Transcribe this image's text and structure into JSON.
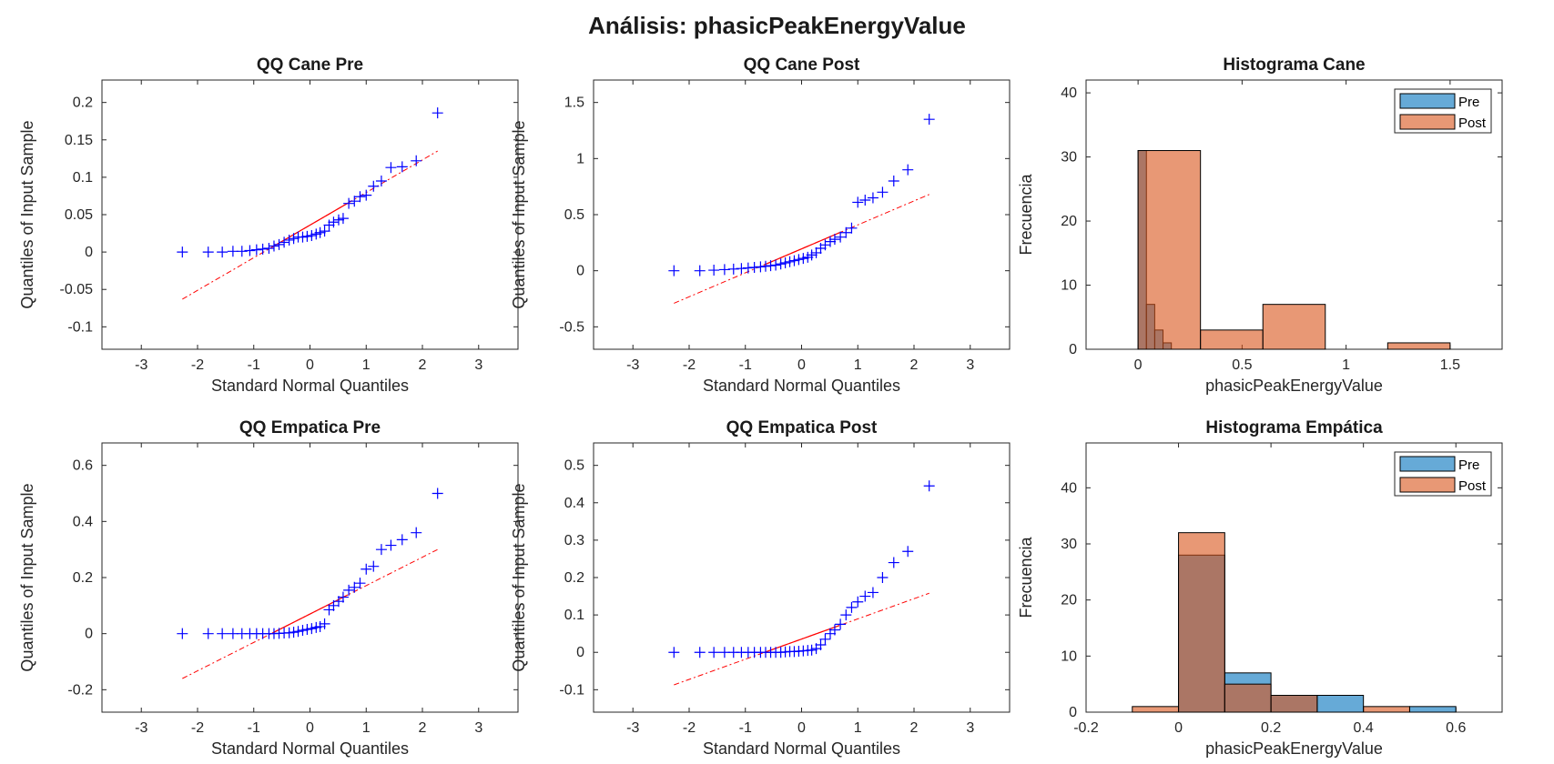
{
  "figure": {
    "suptitle": "Análisis: phasicPeakEnergyValue"
  },
  "colors": {
    "marker": "#0000ff",
    "ref_line": "#ff0000",
    "pre": "#0072bd",
    "post": "#d95319",
    "axis": "#262626"
  },
  "chart_data": [
    {
      "id": "qq-cane-pre",
      "type": "scatter",
      "title": "QQ Cane Pre",
      "xlabel": "Standard Normal Quantiles",
      "ylabel": "Quantiles of Input Sample",
      "xlim": [
        -3.7,
        3.7
      ],
      "ylim": [
        -0.13,
        0.23
      ],
      "xticks": [
        -3,
        -2,
        -1,
        0,
        1,
        2,
        3
      ],
      "yticks": [
        -0.1,
        -0.05,
        0,
        0.05,
        0.1,
        0.15,
        0.2
      ],
      "ytick_labels": [
        "-0.1",
        "-0.05",
        "0",
        "0.05",
        "0.1",
        "0.15",
        "0.2"
      ],
      "points": {
        "x": [
          -2.27,
          -1.81,
          -1.56,
          -1.37,
          -1.21,
          -1.07,
          -0.95,
          -0.84,
          -0.73,
          -0.64,
          -0.55,
          -0.46,
          -0.37,
          -0.29,
          -0.21,
          -0.13,
          -0.05,
          0.03,
          0.11,
          0.18,
          0.26,
          0.34,
          0.42,
          0.51,
          0.59,
          0.69,
          0.79,
          0.89,
          1.0,
          1.13,
          1.27,
          1.44,
          1.64,
          1.89,
          2.27
        ],
        "y": [
          0,
          0,
          0,
          0.001,
          0.001,
          0.002,
          0.003,
          0.004,
          0.005,
          0.008,
          0.01,
          0.013,
          0.016,
          0.018,
          0.02,
          0.02,
          0.021,
          0.022,
          0.024,
          0.026,
          0.028,
          0.036,
          0.04,
          0.043,
          0.045,
          0.065,
          0.068,
          0.074,
          0.076,
          0.088,
          0.095,
          0.113,
          0.114,
          0.122,
          0.186
        ]
      },
      "ref_line": {
        "x": [
          -2.27,
          2.27
        ],
        "y": [
          -0.063,
          0.135
        ]
      }
    },
    {
      "id": "qq-cane-post",
      "type": "scatter",
      "title": "QQ Cane Post",
      "xlabel": "Standard Normal Quantiles",
      "ylabel": "Quantiles of Input Sample",
      "xlim": [
        -3.7,
        3.7
      ],
      "ylim": [
        -0.7,
        1.7
      ],
      "xticks": [
        -3,
        -2,
        -1,
        0,
        1,
        2,
        3
      ],
      "yticks": [
        -0.5,
        0,
        0.5,
        1,
        1.5
      ],
      "ytick_labels": [
        "-0.5",
        "0",
        "0.5",
        "1",
        "1.5"
      ],
      "points": {
        "x": [
          -2.27,
          -1.81,
          -1.56,
          -1.37,
          -1.21,
          -1.07,
          -0.95,
          -0.84,
          -0.73,
          -0.64,
          -0.55,
          -0.46,
          -0.37,
          -0.29,
          -0.21,
          -0.13,
          -0.05,
          0.03,
          0.11,
          0.18,
          0.26,
          0.34,
          0.42,
          0.51,
          0.59,
          0.69,
          0.79,
          0.89,
          1.0,
          1.13,
          1.27,
          1.44,
          1.64,
          1.89,
          2.27
        ],
        "y": [
          0,
          0,
          0.005,
          0.01,
          0.015,
          0.02,
          0.025,
          0.03,
          0.035,
          0.04,
          0.045,
          0.05,
          0.06,
          0.07,
          0.08,
          0.09,
          0.1,
          0.11,
          0.12,
          0.14,
          0.16,
          0.2,
          0.23,
          0.26,
          0.28,
          0.3,
          0.34,
          0.38,
          0.61,
          0.63,
          0.65,
          0.7,
          0.8,
          0.9,
          1.35
        ]
      },
      "ref_line": {
        "x": [
          -2.27,
          2.27
        ],
        "y": [
          -0.29,
          0.68
        ]
      }
    },
    {
      "id": "hist-cane",
      "type": "bar",
      "title": "Histograma Cane",
      "xlabel": "phasicPeakEnergyValue",
      "ylabel": "Frecuencia",
      "xlim": [
        -0.25,
        1.75
      ],
      "ylim": [
        0,
        42
      ],
      "xticks": [
        0,
        0.5,
        1,
        1.5
      ],
      "xtick_labels": [
        "0",
        "0.5",
        "1",
        "1.5"
      ],
      "yticks": [
        0,
        10,
        20,
        30,
        40
      ],
      "legend": [
        "Pre",
        "Post"
      ],
      "legend_position": "top-right",
      "series": [
        {
          "name": "Pre",
          "bin_edges": [
            0,
            0.04,
            0.08,
            0.12,
            0.16,
            0.2
          ],
          "counts": [
            31,
            7,
            3,
            1,
            0
          ]
        },
        {
          "name": "Post",
          "bin_edges": [
            0,
            0.3,
            0.6,
            0.9,
            1.2,
            1.5
          ],
          "counts": [
            31,
            3,
            7,
            0,
            1
          ]
        }
      ]
    },
    {
      "id": "qq-empatica-pre",
      "type": "scatter",
      "title": "QQ Empatica Pre",
      "xlabel": "Standard Normal Quantiles",
      "ylabel": "Quantiles of Input Sample",
      "xlim": [
        -3.7,
        3.7
      ],
      "ylim": [
        -0.28,
        0.68
      ],
      "xticks": [
        -3,
        -2,
        -1,
        0,
        1,
        2,
        3
      ],
      "yticks": [
        -0.2,
        0,
        0.2,
        0.4,
        0.6
      ],
      "ytick_labels": [
        "-0.2",
        "0",
        "0.2",
        "0.4",
        "0.6"
      ],
      "points": {
        "x": [
          -2.27,
          -1.81,
          -1.56,
          -1.37,
          -1.21,
          -1.07,
          -0.95,
          -0.84,
          -0.73,
          -0.64,
          -0.55,
          -0.46,
          -0.37,
          -0.29,
          -0.21,
          -0.13,
          -0.05,
          0.03,
          0.11,
          0.18,
          0.26,
          0.34,
          0.42,
          0.51,
          0.59,
          0.69,
          0.79,
          0.89,
          1.0,
          1.13,
          1.27,
          1.44,
          1.64,
          1.89,
          2.27
        ],
        "y": [
          0,
          0,
          0,
          0,
          0,
          0,
          0,
          0,
          0,
          0,
          0.001,
          0.002,
          0.003,
          0.005,
          0.008,
          0.012,
          0.015,
          0.018,
          0.022,
          0.025,
          0.035,
          0.085,
          0.1,
          0.115,
          0.13,
          0.155,
          0.165,
          0.18,
          0.23,
          0.24,
          0.3,
          0.315,
          0.335,
          0.36,
          0.5
        ]
      },
      "ref_line": {
        "x": [
          -2.27,
          2.27
        ],
        "y": [
          -0.16,
          0.3
        ]
      }
    },
    {
      "id": "qq-empatica-post",
      "type": "scatter",
      "title": "QQ Empatica Post",
      "xlabel": "Standard Normal Quantiles",
      "ylabel": "Quantiles of Input Sample",
      "xlim": [
        -3.7,
        3.7
      ],
      "ylim": [
        -0.16,
        0.56
      ],
      "xticks": [
        -3,
        -2,
        -1,
        0,
        1,
        2,
        3
      ],
      "yticks": [
        -0.1,
        0,
        0.1,
        0.2,
        0.3,
        0.4,
        0.5
      ],
      "ytick_labels": [
        "-0.1",
        "0",
        "0.1",
        "0.2",
        "0.3",
        "0.4",
        "0.5"
      ],
      "points": {
        "x": [
          -2.27,
          -1.81,
          -1.56,
          -1.37,
          -1.21,
          -1.07,
          -0.95,
          -0.84,
          -0.73,
          -0.64,
          -0.55,
          -0.46,
          -0.37,
          -0.29,
          -0.21,
          -0.13,
          -0.05,
          0.03,
          0.11,
          0.18,
          0.26,
          0.34,
          0.42,
          0.51,
          0.59,
          0.69,
          0.79,
          0.89,
          1.0,
          1.13,
          1.27,
          1.44,
          1.64,
          1.89,
          2.27
        ],
        "y": [
          0,
          0,
          0,
          0,
          0,
          0,
          0,
          0,
          0,
          0,
          0,
          0,
          0,
          0.001,
          0.002,
          0.002,
          0.003,
          0.004,
          0.005,
          0.006,
          0.01,
          0.02,
          0.035,
          0.05,
          0.06,
          0.075,
          0.1,
          0.12,
          0.135,
          0.15,
          0.16,
          0.2,
          0.24,
          0.27,
          0.445
        ]
      },
      "ref_line": {
        "x": [
          -2.27,
          2.27
        ],
        "y": [
          -0.087,
          0.158
        ]
      }
    },
    {
      "id": "hist-empatica",
      "type": "bar",
      "title": "Histograma Empática",
      "xlabel": "phasicPeakEnergyValue",
      "ylabel": "Frecuencia",
      "xlim": [
        -0.2,
        0.7
      ],
      "ylim": [
        0,
        48
      ],
      "xticks": [
        -0.2,
        0,
        0.2,
        0.4,
        0.6
      ],
      "xtick_labels": [
        "-0.2",
        "0",
        "0.2",
        "0.4",
        "0.6"
      ],
      "yticks": [
        0,
        10,
        20,
        30,
        40
      ],
      "legend": [
        "Pre",
        "Post"
      ],
      "legend_position": "top-right",
      "series": [
        {
          "name": "Pre",
          "bin_edges": [
            0,
            0.1,
            0.2,
            0.3,
            0.4,
            0.5,
            0.6
          ],
          "counts": [
            28,
            7,
            3,
            3,
            0,
            1
          ]
        },
        {
          "name": "Post",
          "bin_edges": [
            -0.1,
            0,
            0.1,
            0.2,
            0.3,
            0.4,
            0.5
          ],
          "counts": [
            1,
            32,
            5,
            3,
            0,
            1
          ]
        }
      ]
    }
  ]
}
